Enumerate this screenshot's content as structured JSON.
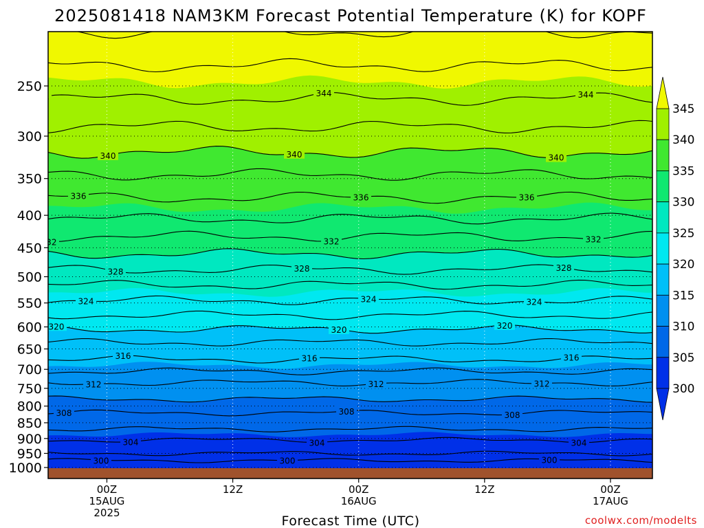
{
  "chart_data": {
    "type": "heatmap",
    "title": "2025081418 NAM3KM Forecast Potential Temperature (K) for KOPF",
    "xlabel": "Forecast Time (UTC)",
    "credit": "coolwx.com/modelts",
    "y_axis": {
      "scale": "log",
      "reversed": true,
      "range": [
        1000,
        200
      ],
      "ticks": [
        250,
        300,
        350,
        400,
        450,
        500,
        550,
        600,
        650,
        700,
        750,
        800,
        850,
        900,
        950,
        1000
      ]
    },
    "x_axis": {
      "range_hours": [
        -3.5,
        32.5
      ],
      "ticks": [
        {
          "hour": 0,
          "lines": [
            "00Z",
            "15AUG",
            "2025"
          ]
        },
        {
          "hour": 7.5,
          "lines": [
            "12Z"
          ]
        },
        {
          "hour": 15,
          "lines": [
            "00Z",
            "16AUG"
          ]
        },
        {
          "hour": 22.5,
          "lines": [
            "12Z"
          ]
        },
        {
          "hour": 30,
          "lines": [
            "00Z",
            "17AUG"
          ]
        }
      ]
    },
    "color_levels": [
      300,
      305,
      310,
      315,
      320,
      325,
      330,
      335,
      340,
      345
    ],
    "colorbar_labels": [
      "345",
      "340",
      "335",
      "330",
      "325",
      "320",
      "315",
      "310",
      "305",
      "300"
    ],
    "colors": [
      "#0030e8",
      "#0068e8",
      "#0090f0",
      "#00c0f8",
      "#00e8f0",
      "#00e8c0",
      "#10e870",
      "#40e830",
      "#a0f000",
      "#f0f800"
    ],
    "contour_labels": [
      "344",
      "340",
      "336",
      "332",
      "328",
      "324",
      "320",
      "316",
      "312",
      "308",
      "304",
      "300"
    ],
    "ground_color": "#a0522d",
    "profile": [
      {
        "k": 300,
        "p": 975
      },
      {
        "k": 302,
        "p": 950
      },
      {
        "k": 304,
        "p": 905
      },
      {
        "k": 306,
        "p": 870
      },
      {
        "k": 308,
        "p": 820
      },
      {
        "k": 310,
        "p": 780
      },
      {
        "k": 312,
        "p": 735
      },
      {
        "k": 314,
        "p": 705
      },
      {
        "k": 316,
        "p": 675
      },
      {
        "k": 318,
        "p": 635
      },
      {
        "k": 320,
        "p": 605
      },
      {
        "k": 322,
        "p": 575
      },
      {
        "k": 324,
        "p": 545
      },
      {
        "k": 326,
        "p": 515
      },
      {
        "k": 328,
        "p": 487
      },
      {
        "k": 330,
        "p": 460
      },
      {
        "k": 332,
        "p": 432
      },
      {
        "k": 334,
        "p": 405
      },
      {
        "k": 336,
        "p": 375
      },
      {
        "k": 338,
        "p": 345
      },
      {
        "k": 340,
        "p": 318
      },
      {
        "k": 342,
        "p": 290
      },
      {
        "k": 344,
        "p": 262
      },
      {
        "k": 346,
        "p": 232
      },
      {
        "k": 348,
        "p": 205
      }
    ]
  }
}
